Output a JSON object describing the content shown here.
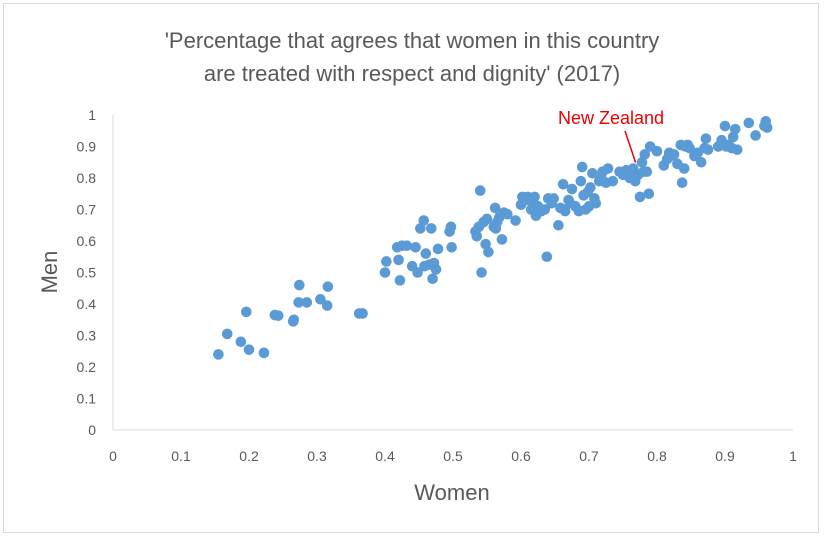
{
  "chart_data": {
    "type": "scatter",
    "title_lines": [
      "'Percentage that agrees that women in this country",
      "are treated with respect and dignity' (2017)"
    ],
    "xlabel": "Women",
    "ylabel": "Men",
    "xlim": [
      0,
      1
    ],
    "ylim": [
      0,
      1
    ],
    "x_ticks": [
      "0",
      "0.1",
      "0.2",
      "0.3",
      "0.4",
      "0.5",
      "0.6",
      "0.7",
      "0.8",
      "0.9",
      "1"
    ],
    "y_ticks": [
      "0",
      "0.1",
      "0.2",
      "0.3",
      "0.4",
      "0.5",
      "0.6",
      "0.7",
      "0.8",
      "0.9",
      "1"
    ],
    "grid": false,
    "point_color": "#5b9bd5",
    "annotation": {
      "label": "New Zealand",
      "color": "#ee0000",
      "x": 0.77,
      "y": 0.83
    },
    "points": [
      [
        0.155,
        0.24
      ],
      [
        0.168,
        0.305
      ],
      [
        0.188,
        0.28
      ],
      [
        0.196,
        0.375
      ],
      [
        0.2,
        0.255
      ],
      [
        0.222,
        0.245
      ],
      [
        0.238,
        0.365
      ],
      [
        0.243,
        0.363
      ],
      [
        0.265,
        0.345
      ],
      [
        0.266,
        0.35
      ],
      [
        0.273,
        0.405
      ],
      [
        0.274,
        0.46
      ],
      [
        0.285,
        0.405
      ],
      [
        0.305,
        0.415
      ],
      [
        0.315,
        0.395
      ],
      [
        0.316,
        0.455
      ],
      [
        0.362,
        0.37
      ],
      [
        0.367,
        0.37
      ],
      [
        0.4,
        0.5
      ],
      [
        0.402,
        0.535
      ],
      [
        0.418,
        0.58
      ],
      [
        0.42,
        0.54
      ],
      [
        0.422,
        0.475
      ],
      [
        0.425,
        0.585
      ],
      [
        0.432,
        0.585
      ],
      [
        0.44,
        0.52
      ],
      [
        0.445,
        0.58
      ],
      [
        0.448,
        0.5
      ],
      [
        0.452,
        0.64
      ],
      [
        0.457,
        0.665
      ],
      [
        0.458,
        0.52
      ],
      [
        0.46,
        0.56
      ],
      [
        0.465,
        0.525
      ],
      [
        0.468,
        0.64
      ],
      [
        0.47,
        0.48
      ],
      [
        0.472,
        0.53
      ],
      [
        0.475,
        0.51
      ],
      [
        0.478,
        0.575
      ],
      [
        0.495,
        0.63
      ],
      [
        0.497,
        0.645
      ],
      [
        0.498,
        0.58
      ],
      [
        0.533,
        0.63
      ],
      [
        0.535,
        0.615
      ],
      [
        0.538,
        0.645
      ],
      [
        0.54,
        0.76
      ],
      [
        0.542,
        0.5
      ],
      [
        0.545,
        0.66
      ],
      [
        0.548,
        0.59
      ],
      [
        0.55,
        0.67
      ],
      [
        0.552,
        0.565
      ],
      [
        0.56,
        0.645
      ],
      [
        0.562,
        0.705
      ],
      [
        0.563,
        0.64
      ],
      [
        0.565,
        0.66
      ],
      [
        0.568,
        0.675
      ],
      [
        0.572,
        0.605
      ],
      [
        0.575,
        0.69
      ],
      [
        0.58,
        0.685
      ],
      [
        0.592,
        0.665
      ],
      [
        0.6,
        0.715
      ],
      [
        0.602,
        0.74
      ],
      [
        0.608,
        0.73
      ],
      [
        0.61,
        0.74
      ],
      [
        0.615,
        0.7
      ],
      [
        0.618,
        0.725
      ],
      [
        0.62,
        0.74
      ],
      [
        0.622,
        0.68
      ],
      [
        0.625,
        0.71
      ],
      [
        0.63,
        0.695
      ],
      [
        0.635,
        0.7
      ],
      [
        0.638,
        0.55
      ],
      [
        0.64,
        0.735
      ],
      [
        0.645,
        0.72
      ],
      [
        0.648,
        0.735
      ],
      [
        0.655,
        0.65
      ],
      [
        0.658,
        0.705
      ],
      [
        0.662,
        0.78
      ],
      [
        0.665,
        0.695
      ],
      [
        0.67,
        0.73
      ],
      [
        0.672,
        0.72
      ],
      [
        0.675,
        0.765
      ],
      [
        0.68,
        0.71
      ],
      [
        0.685,
        0.695
      ],
      [
        0.688,
        0.79
      ],
      [
        0.69,
        0.835
      ],
      [
        0.692,
        0.745
      ],
      [
        0.695,
        0.7
      ],
      [
        0.698,
        0.755
      ],
      [
        0.7,
        0.71
      ],
      [
        0.702,
        0.77
      ],
      [
        0.705,
        0.815
      ],
      [
        0.708,
        0.735
      ],
      [
        0.71,
        0.72
      ],
      [
        0.715,
        0.79
      ],
      [
        0.718,
        0.8
      ],
      [
        0.72,
        0.82
      ],
      [
        0.725,
        0.785
      ],
      [
        0.728,
        0.83
      ],
      [
        0.735,
        0.79
      ],
      [
        0.745,
        0.82
      ],
      [
        0.75,
        0.81
      ],
      [
        0.755,
        0.825
      ],
      [
        0.76,
        0.8
      ],
      [
        0.765,
        0.83
      ],
      [
        0.768,
        0.79
      ],
      [
        0.772,
        0.81
      ],
      [
        0.775,
        0.74
      ],
      [
        0.778,
        0.85
      ],
      [
        0.78,
        0.82
      ],
      [
        0.782,
        0.875
      ],
      [
        0.785,
        0.82
      ],
      [
        0.788,
        0.75
      ],
      [
        0.79,
        0.9
      ],
      [
        0.8,
        0.885
      ],
      [
        0.81,
        0.84
      ],
      [
        0.815,
        0.86
      ],
      [
        0.818,
        0.88
      ],
      [
        0.82,
        0.87
      ],
      [
        0.825,
        0.875
      ],
      [
        0.83,
        0.845
      ],
      [
        0.835,
        0.905
      ],
      [
        0.837,
        0.785
      ],
      [
        0.84,
        0.83
      ],
      [
        0.842,
        0.9
      ],
      [
        0.845,
        0.905
      ],
      [
        0.848,
        0.895
      ],
      [
        0.855,
        0.87
      ],
      [
        0.86,
        0.88
      ],
      [
        0.865,
        0.85
      ],
      [
        0.87,
        0.895
      ],
      [
        0.872,
        0.925
      ],
      [
        0.875,
        0.89
      ],
      [
        0.89,
        0.9
      ],
      [
        0.895,
        0.92
      ],
      [
        0.9,
        0.965
      ],
      [
        0.902,
        0.9
      ],
      [
        0.905,
        0.905
      ],
      [
        0.91,
        0.895
      ],
      [
        0.912,
        0.93
      ],
      [
        0.915,
        0.955
      ],
      [
        0.918,
        0.89
      ],
      [
        0.935,
        0.975
      ],
      [
        0.945,
        0.935
      ],
      [
        0.958,
        0.965
      ],
      [
        0.96,
        0.98
      ],
      [
        0.962,
        0.96
      ]
    ]
  }
}
